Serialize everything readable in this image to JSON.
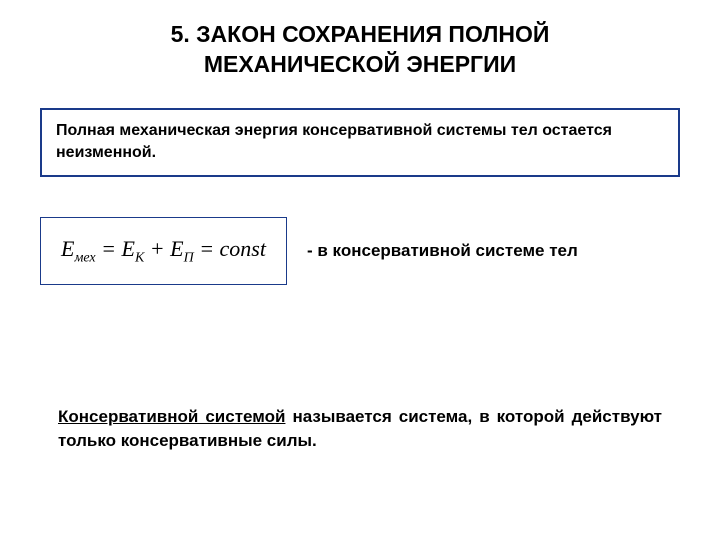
{
  "title_line1": "5. ЗАКОН СОХРАНЕНИЯ ПОЛНОЙ",
  "title_line2": "МЕХАНИЧЕСКОЙ ЭНЕРГИИ",
  "definition": "Полная механическая энергия консервативной системы тел остается неизменной.",
  "formula": {
    "E_mex": "E",
    "sub_mex": "мех",
    "eq1": " = ",
    "E_K": "E",
    "sub_K": "К",
    "plus": " + ",
    "E_P": "E",
    "sub_P": "П",
    "eq2": " = ",
    "const": "const"
  },
  "formula_note": "- в консервативной системе тел",
  "bottom": {
    "underlined": "Консервативной системой",
    "rest": " называется система, в которой действуют только консервативные силы."
  },
  "colors": {
    "border": "#1a3a8a",
    "text": "#000000",
    "background": "#ffffff"
  },
  "fonts": {
    "title_size": 23,
    "body_size": 17,
    "formula_size": 22,
    "definition_size": 16
  }
}
